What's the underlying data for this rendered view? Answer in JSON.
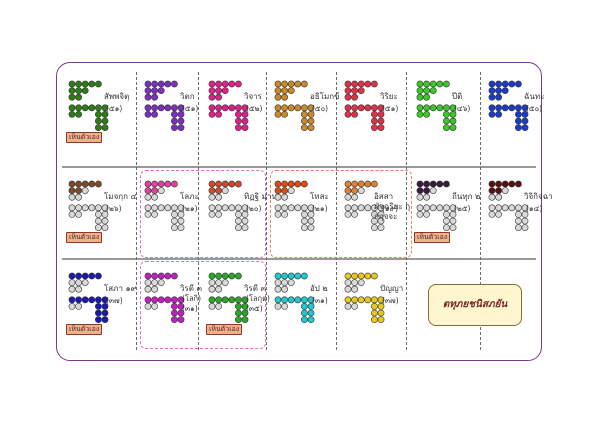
{
  "title": "ตทุภยชนิสภยัน",
  "tag_text": "เห็นตัวเอง",
  "rows": [
    [
      {
        "id": "r1c1",
        "color": "#2e7d16",
        "label": "สัพพจิตฺ",
        "num": "(๕๑)",
        "tag": true,
        "pattern": "full"
      },
      {
        "id": "r1c2",
        "color": "#7b2fbf",
        "label": "วิตก",
        "num": "(๕๑)",
        "tag": false,
        "pattern": "full"
      },
      {
        "id": "r1c3",
        "color": "#e0208a",
        "label": "วิจาร",
        "num": "(๕๒)",
        "tag": false,
        "pattern": "full"
      },
      {
        "id": "r1c4",
        "color": "#c88a2a",
        "label": "อธิโมกข์",
        "num": "(๕๐)",
        "tag": false,
        "pattern": "full"
      },
      {
        "id": "r1c5",
        "color": "#e0304a",
        "label": "วิริยะ",
        "num": "(๕๑)",
        "tag": false,
        "pattern": "full"
      },
      {
        "id": "r1c6",
        "color": "#3ac82a",
        "label": "ปีติ",
        "num": "(๔๖)",
        "tag": false,
        "pattern": "full"
      },
      {
        "id": "r1c7",
        "color": "#1a3ac8",
        "label": "ฉันทะ",
        "num": "(๕๐)",
        "tag": false,
        "pattern": "full"
      }
    ],
    [
      {
        "id": "r2c1",
        "color": "#7a4a2a",
        "label": "โมจกฺก ๔",
        "num": "(๒๖)",
        "tag": true,
        "pattern": "partial"
      },
      {
        "id": "r2c2",
        "color": "#e040a0",
        "label": "โลภะ",
        "num": "(๒๑)",
        "tag": false,
        "pattern": "partial"
      },
      {
        "id": "r2c3",
        "color": "#d04a2a",
        "label": "ทิฏฐิ มานะ",
        "num": "(๒๐)",
        "tag": false,
        "pattern": "partial"
      },
      {
        "id": "r2c4",
        "color": "#e04a10",
        "label": "โทสะ",
        "num": "(๒๑)",
        "tag": false,
        "pattern": "partial"
      },
      {
        "id": "r2c5",
        "color": "#e08030",
        "label": "อิสสา มัจฉริยะ กุกกุจจะ",
        "num": "(๑๙)",
        "tag": false,
        "pattern": "partial"
      },
      {
        "id": "r2c6",
        "color": "#3a1a3a",
        "label": "ถีนทุก ๒",
        "num": "(๒๕)",
        "tag": true,
        "pattern": "partial"
      },
      {
        "id": "r2c7",
        "color": "#5a1010",
        "label": "วิจิกิจฉา",
        "num": "(๑๔)",
        "tag": false,
        "pattern": "partial"
      }
    ],
    [
      {
        "id": "r3c1",
        "color": "#1a1ab0",
        "label": "โสภา ๑๙",
        "num": "(๓๗)",
        "tag": true,
        "pattern": "sobha"
      },
      {
        "id": "r3c2",
        "color": "#c020c0",
        "label": "วิรตี ๓",
        "sub": "(โลกิ)",
        "num": "(๓๑)",
        "tag": false,
        "pattern": "sobha"
      },
      {
        "id": "r3c3",
        "color": "#2aa82a",
        "label": "วิรตี ๓",
        "sub": "(โลกุต)",
        "num": "(๓๕)",
        "tag": true,
        "pattern": "sobha"
      },
      {
        "id": "r3c4",
        "color": "#20c8d0",
        "label": "อัป ๒",
        "num": "(๓๑)",
        "tag": false,
        "pattern": "sobha"
      },
      {
        "id": "r3c5",
        "color": "#e8c81a",
        "label": "ปัญญา",
        "num": "(๓๗)",
        "tag": false,
        "pattern": "sobha"
      }
    ]
  ],
  "colors": {
    "frame": "#7a3a8a",
    "empty": "#d8d8d8",
    "group_pink": "#e070c0",
    "group_orange": "#f08060"
  }
}
